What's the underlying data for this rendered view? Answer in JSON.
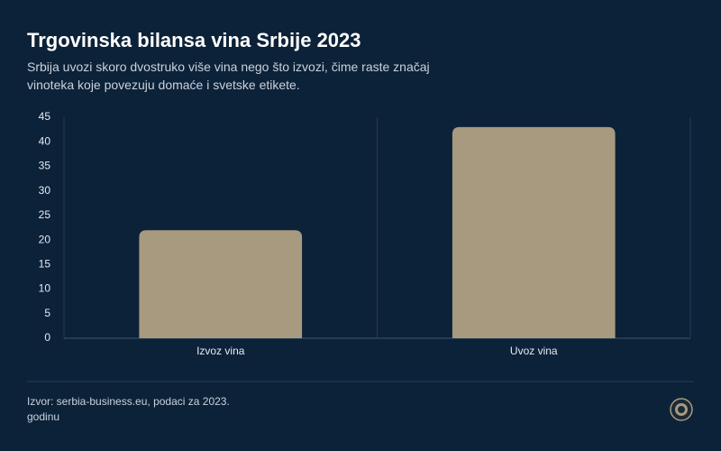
{
  "chart_data": {
    "type": "bar",
    "title": "Trgovinska bilansa vina Srbije 2023",
    "subtitle": "Srbija uvozi skoro dvostruko više vina nego što izvozi, čime raste značaj vinoteka koje povezuju domaće i svetske etikete.",
    "categories": [
      "Izvoz vina",
      "Uvoz vina"
    ],
    "values": [
      22,
      43
    ],
    "color": "#a89a7f",
    "ylim": [
      0,
      45
    ],
    "yticks": [
      0,
      5,
      10,
      15,
      20,
      25,
      30,
      35,
      40,
      45
    ],
    "grid": true,
    "source": "Izvor: serbia-business.eu, podaci za 2023. godinu"
  }
}
